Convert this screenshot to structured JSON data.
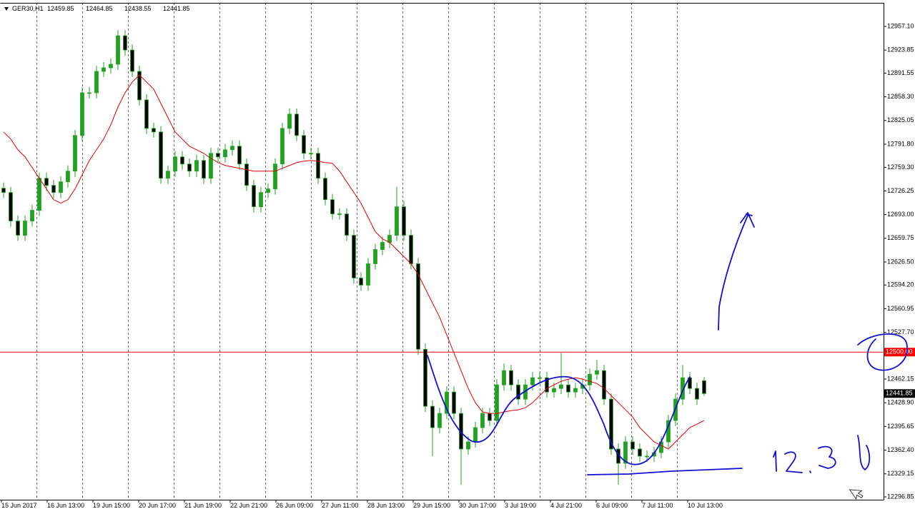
{
  "chart_data": {
    "type": "candlestick",
    "symbol": "GER30,H1",
    "ohlc_text": [
      "12459.85",
      "12464.85",
      "12438.55",
      "12441.85"
    ],
    "up_color": "#22a022",
    "down_color": "#000000",
    "wick_color": "#22a022",
    "ylim": [
      12292.84,
      12990.16
    ],
    "yticks": [
      {
        "value": 12957.1,
        "label": "12957.10"
      },
      {
        "value": 12923.85,
        "label": "12923.85"
      },
      {
        "value": 12891.55,
        "label": "12891.55"
      },
      {
        "value": 12858.3,
        "label": "12858.30"
      },
      {
        "value": 12825.05,
        "label": "12825.05"
      },
      {
        "value": 12791.8,
        "label": "12791.80"
      },
      {
        "value": 12759.3,
        "label": "12759.30"
      },
      {
        "value": 12726.25,
        "label": "12726.25"
      },
      {
        "value": 12693.0,
        "label": "12693.00"
      },
      {
        "value": 12659.75,
        "label": "12659.75"
      },
      {
        "value": 12626.5,
        "label": "12626.50"
      },
      {
        "value": 12594.2,
        "label": "12594.20"
      },
      {
        "value": 12560.95,
        "label": "12560.95"
      },
      {
        "value": 12527.7,
        "label": "12527.70"
      },
      {
        "value": 12462.15,
        "label": "12462.15"
      },
      {
        "value": 12428.9,
        "label": "12428.90"
      },
      {
        "value": 12395.65,
        "label": "12395.65"
      },
      {
        "value": 12362.4,
        "label": "12362.40"
      },
      {
        "value": 12329.15,
        "label": "12329.15"
      },
      {
        "value": 12296.85,
        "label": "12296.85"
      }
    ],
    "hline": {
      "value": 12500,
      "label": "12500.00",
      "color": "#ff0000"
    },
    "bid": {
      "value": 12441.85,
      "label": "12441.85"
    },
    "time_labels": [
      "15 Jun 2017",
      "16 Jun 13:00",
      "19 Jun 15:00",
      "20 Jun 17:00",
      "21 Jun 19:00",
      "22 Jun 21:00",
      "26 Jun 09:00",
      "27 Jun 11:00",
      "28 Jun 13:00",
      "29 Jun 15:00",
      "30 Jun 17:00",
      "3 Jul 19:00",
      "4 Jul 21:00",
      "6 Jul 09:00",
      "7 Jul 11:00",
      "10 Jul 13:00"
    ],
    "candles": [
      [
        12730,
        12738,
        12716,
        12724
      ],
      [
        12724,
        12732,
        12676,
        12684
      ],
      [
        12684,
        12692,
        12656,
        12664
      ],
      [
        12664,
        12692,
        12656,
        12684
      ],
      [
        12684,
        12707,
        12676,
        12699
      ],
      [
        12699,
        12752,
        12691,
        12744
      ],
      [
        12744,
        12752,
        12726,
        12734
      ],
      [
        12734,
        12742,
        12716,
        12724
      ],
      [
        12724,
        12747,
        12716,
        12739
      ],
      [
        12739,
        12762,
        12731,
        12754
      ],
      [
        12754,
        12812,
        12746,
        12804
      ],
      [
        12804,
        12872,
        12796,
        12864
      ],
      [
        12864,
        12872,
        12856,
        12864
      ],
      [
        12864,
        12902,
        12856,
        12894
      ],
      [
        12894,
        12907,
        12886,
        12899
      ],
      [
        12899,
        12912,
        12891,
        12904
      ],
      [
        12904,
        12952,
        12896,
        12944
      ],
      [
        12944,
        12952,
        12916,
        12924
      ],
      [
        12924,
        12932,
        12886,
        12894
      ],
      [
        12894,
        12902,
        12846,
        12854
      ],
      [
        12854,
        12862,
        12806,
        12814
      ],
      [
        12814,
        12822,
        12801,
        12809
      ],
      [
        12809,
        12817,
        12736,
        12744
      ],
      [
        12744,
        12762,
        12736,
        12754
      ],
      [
        12754,
        12782,
        12746,
        12774
      ],
      [
        12774,
        12782,
        12756,
        12764
      ],
      [
        12764,
        12772,
        12746,
        12754
      ],
      [
        12754,
        12777,
        12746,
        12769
      ],
      [
        12769,
        12777,
        12736,
        12744
      ],
      [
        12744,
        12787,
        12736,
        12779
      ],
      [
        12779,
        12787,
        12766,
        12774
      ],
      [
        12774,
        12792,
        12766,
        12784
      ],
      [
        12784,
        12797,
        12776,
        12789
      ],
      [
        12789,
        12797,
        12756,
        12764
      ],
      [
        12764,
        12772,
        12726,
        12734
      ],
      [
        12734,
        12742,
        12696,
        12704
      ],
      [
        12704,
        12732,
        12696,
        12724
      ],
      [
        12724,
        12737,
        12716,
        12729
      ],
      [
        12729,
        12772,
        12721,
        12764
      ],
      [
        12764,
        12822,
        12756,
        12814
      ],
      [
        12814,
        12842,
        12806,
        12834
      ],
      [
        12834,
        12842,
        12796,
        12804
      ],
      [
        12804,
        12812,
        12771,
        12779
      ],
      [
        12779,
        12787,
        12771,
        12779
      ],
      [
        12779,
        12787,
        12736,
        12744
      ],
      [
        12744,
        12752,
        12706,
        12714
      ],
      [
        12714,
        12722,
        12686,
        12694
      ],
      [
        12694,
        12702,
        12686,
        12694
      ],
      [
        12694,
        12702,
        12656,
        12664
      ],
      [
        12664,
        12672,
        12596,
        12604
      ],
      [
        12604,
        12612,
        12586,
        12594
      ],
      [
        12594,
        12632,
        12586,
        12624
      ],
      [
        12624,
        12652,
        12616,
        12644
      ],
      [
        12644,
        12662,
        12636,
        12654
      ],
      [
        12654,
        12672,
        12646,
        12664
      ],
      [
        12664,
        12732,
        12656,
        12704
      ],
      [
        12704,
        12712,
        12656,
        12664
      ],
      [
        12664,
        12672,
        12616,
        12624
      ],
      [
        12624,
        12632,
        12496,
        12504
      ],
      [
        12504,
        12512,
        12416,
        12424
      ],
      [
        12424,
        12432,
        12354,
        12394
      ],
      [
        12394,
        12422,
        12386,
        12414
      ],
      [
        12414,
        12452,
        12406,
        12444
      ],
      [
        12444,
        12452,
        12406,
        12414
      ],
      [
        12414,
        12422,
        12314,
        12364
      ],
      [
        12364,
        12382,
        12356,
        12374
      ],
      [
        12374,
        12402,
        12366,
        12394
      ],
      [
        12394,
        12422,
        12386,
        12414
      ],
      [
        12414,
        12422,
        12396,
        12404
      ],
      [
        12404,
        12462,
        12396,
        12454
      ],
      [
        12454,
        12484,
        12446,
        12474
      ],
      [
        12474,
        12482,
        12446,
        12454
      ],
      [
        12454,
        12462,
        12426,
        12434
      ],
      [
        12434,
        12462,
        12426,
        12454
      ],
      [
        12454,
        12472,
        12446,
        12464
      ],
      [
        12464,
        12472,
        12456,
        12464
      ],
      [
        12464,
        12472,
        12436,
        12444
      ],
      [
        12444,
        12457,
        12436,
        12449
      ],
      [
        12449,
        12499,
        12441,
        12454
      ],
      [
        12454,
        12462,
        12436,
        12444
      ],
      [
        12444,
        12457,
        12436,
        12449
      ],
      [
        12449,
        12462,
        12441,
        12454
      ],
      [
        12454,
        12477,
        12446,
        12469
      ],
      [
        12469,
        12489,
        12461,
        12474
      ],
      [
        12474,
        12482,
        12426,
        12434
      ],
      [
        12434,
        12442,
        12356,
        12364
      ],
      [
        12364,
        12372,
        12314,
        12344
      ],
      [
        12344,
        12382,
        12336,
        12374
      ],
      [
        12374,
        12382,
        12356,
        12364
      ],
      [
        12364,
        12372,
        12346,
        12354
      ],
      [
        12354,
        12362,
        12346,
        12354
      ],
      [
        12354,
        12367,
        12346,
        12359
      ],
      [
        12359,
        12382,
        12351,
        12374
      ],
      [
        12374,
        12412,
        12366,
        12404
      ],
      [
        12404,
        12442,
        12396,
        12434
      ],
      [
        12434,
        12482,
        12426,
        12464
      ],
      [
        12464,
        12472,
        12441,
        12449
      ],
      [
        12449,
        12457,
        12426,
        12434
      ],
      [
        12459.85,
        12464.85,
        12438.55,
        12441.85
      ]
    ],
    "ma": {
      "color": "#e00000",
      "values": [
        12809,
        12799,
        12784,
        12774,
        12759,
        12744,
        12729,
        12714,
        12709,
        12714,
        12729,
        12749,
        12769,
        12784,
        12799,
        12819,
        12844,
        12864,
        12879,
        12889,
        12879,
        12869,
        12849,
        12829,
        12809,
        12799,
        12789,
        12784,
        12779,
        12772,
        12766,
        12762,
        12760,
        12758,
        12756,
        12754,
        12754,
        12754,
        12754,
        12758,
        12762,
        12766,
        12768,
        12769,
        12768,
        12766,
        12765,
        12754,
        12739,
        12724,
        12709,
        12689,
        12669,
        12659,
        12654,
        12644,
        12634,
        12624,
        12609,
        12589,
        12569,
        12549,
        12524,
        12499,
        12474,
        12449,
        12429,
        12416,
        12414,
        12414,
        12416,
        12418,
        12419,
        12422,
        12429,
        12439,
        12449,
        12454,
        12459,
        12462,
        12464,
        12462,
        12459,
        12456,
        12449,
        12439,
        12429,
        12419,
        12409,
        12394,
        12384,
        12374,
        12369,
        12364,
        12374,
        12384,
        12394,
        12399,
        12404
      ]
    }
  }
}
